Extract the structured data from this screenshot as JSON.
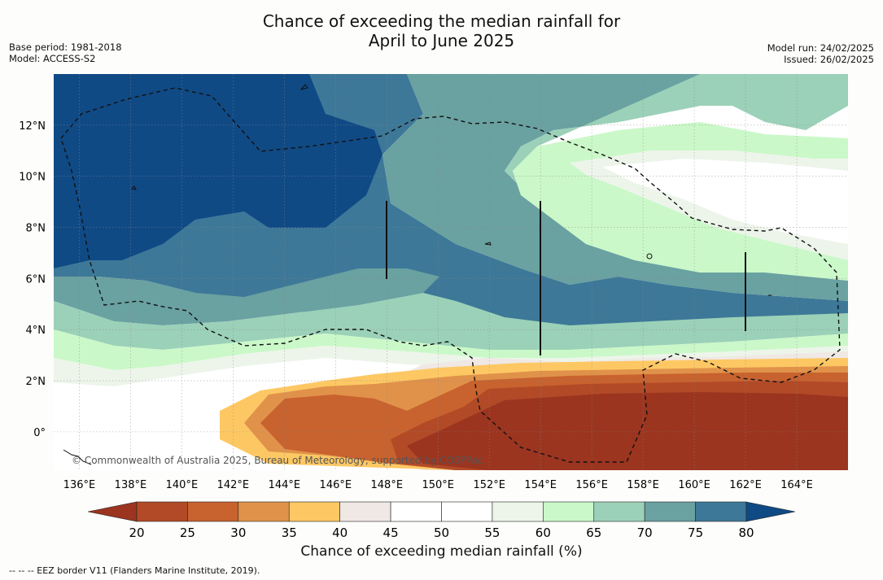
{
  "title_line1": "Chance of exceeding the median rainfall for",
  "title_line2": "April to June 2025",
  "base_period": "Base period: 1981-2018",
  "model": "Model: ACCESS-S2",
  "model_run": "Model run: 24/02/2025",
  "issued": "Issued: 26/02/2025",
  "copyright": "© Commonwealth of Australia 2025, Bureau of Meteorology, supported by COSPPac",
  "footnote": "--  --  -- EEZ border V11 (Flanders Marine Institute, 2019).",
  "map": {
    "lon_range": [
      135,
      166
    ],
    "lat_range": [
      -1.5,
      14
    ],
    "lon_ticks": [
      "136°E",
      "138°E",
      "140°E",
      "142°E",
      "144°E",
      "146°E",
      "148°E",
      "150°E",
      "152°E",
      "154°E",
      "156°E",
      "158°E",
      "160°E",
      "162°E",
      "164°E"
    ],
    "lat_ticks": [
      "0°",
      "2°N",
      "4°N",
      "6°N",
      "8°N",
      "10°N",
      "12°N"
    ]
  },
  "colorbar": {
    "title": "Chance of exceeding median rainfall (%)",
    "ticks": [
      "20",
      "25",
      "30",
      "35",
      "40",
      "45",
      "50",
      "55",
      "60",
      "65",
      "70",
      "75",
      "80"
    ],
    "colors": [
      "#9b3520",
      "#b24a27",
      "#c8622e",
      "#e0924a",
      "#fdc864",
      "#efe8e4",
      "#ffffff",
      "#ffffff",
      "#edf5ea",
      "#cbf8c9",
      "#9bd1b8",
      "#6aa1a1",
      "#3d7898",
      "#104a85"
    ]
  }
}
